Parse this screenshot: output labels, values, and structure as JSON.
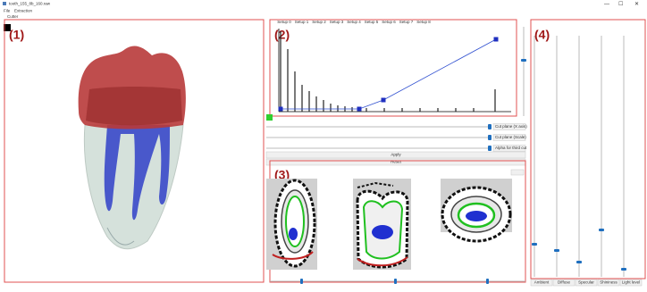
{
  "window": {
    "title": "tooth_155_8b_160.raw",
    "menu": [
      "File",
      "Extraction"
    ]
  },
  "cutter_label": "Cutter",
  "panel_labels": [
    "(1)",
    "(2)",
    "(3)",
    "(4)"
  ],
  "tabs": [
    "Setup 0",
    "Setup 1",
    "Setup 2",
    "Setup 3",
    "Setup 4",
    "Setup 5",
    "Setup 6",
    "Setup 7",
    "Setup 8"
  ],
  "sliders": [
    "Cut plane (X axis)",
    "Cut plane (Scale)",
    "Alpha for third cut"
  ],
  "buttons": {
    "apply": "Apply",
    "reset": "Reset"
  },
  "lighting": [
    "Ambient",
    "Diffuse",
    "Specular",
    "Shininess",
    "Light level"
  ]
}
